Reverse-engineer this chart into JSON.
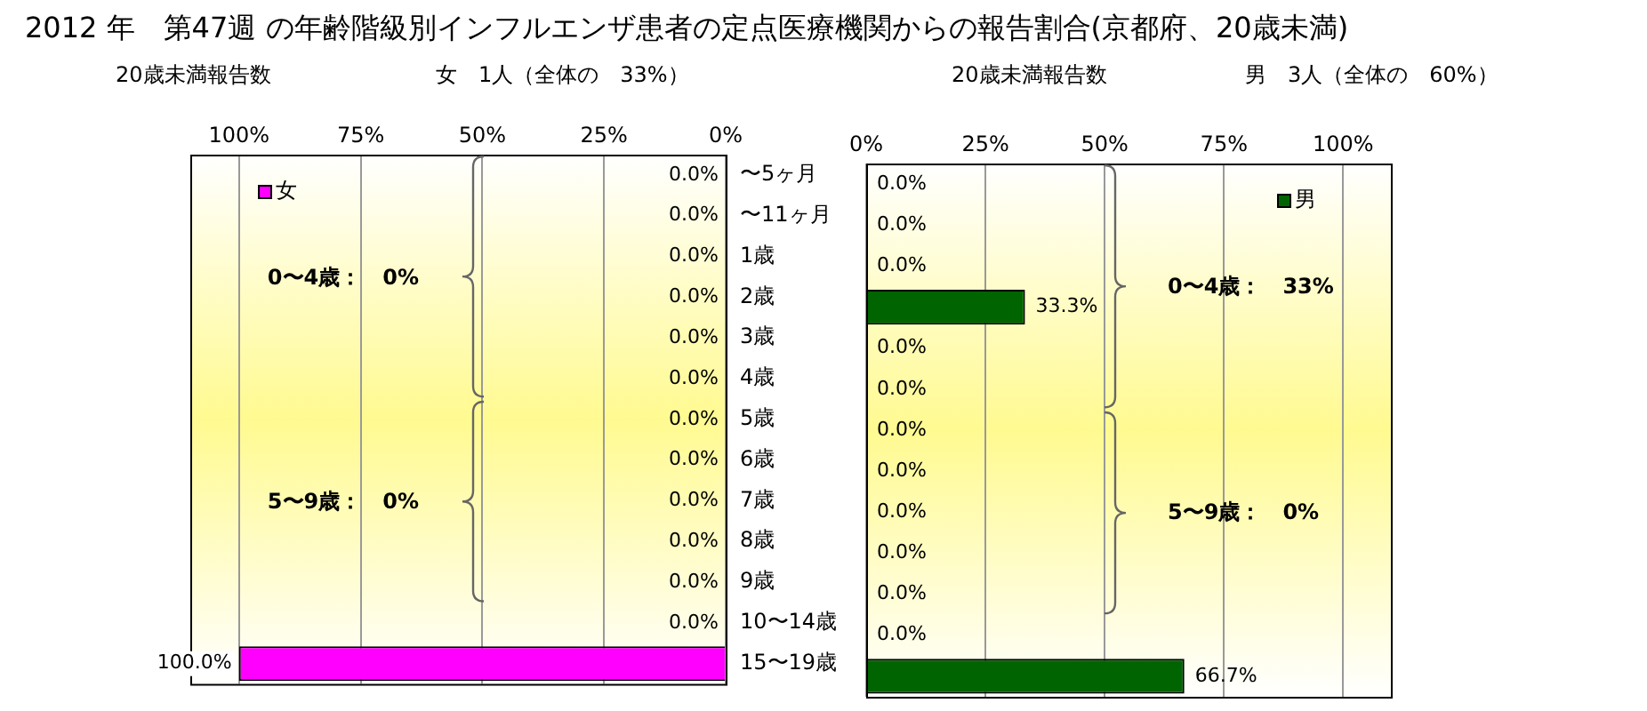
{
  "chart_data": [
    {
      "type": "bar",
      "orientation": "horizontal",
      "title": "2012 年　第47週 の年齢階級別インフルエンザ患者の定点医療機関からの報告割合(京都府、20歳未満)",
      "subtitle": "20歳未満報告数",
      "annotations": [
        "女　1人（全体の　33%）",
        "0〜4歳：　0%",
        "5〜9歳：　0%"
      ],
      "categories": [
        "〜5ヶ月",
        "〜11ヶ月",
        "1歳",
        "2歳",
        "3歳",
        "4歳",
        "5歳",
        "6歳",
        "7歳",
        "8歳",
        "9歳",
        "10〜14歳",
        "15〜19歳"
      ],
      "series": [
        {
          "name": "女",
          "color": "#ff00ff",
          "values": [
            0,
            0,
            0,
            0,
            0,
            0,
            0,
            0,
            0,
            0,
            0,
            0,
            100
          ],
          "value_labels": [
            "0.0%",
            "0.0%",
            "0.0%",
            "0.0%",
            "0.0%",
            "0.0%",
            "0.0%",
            "0.0%",
            "0.0%",
            "0.0%",
            "0.0%",
            "0.0%",
            "100.0%"
          ]
        }
      ],
      "xlim": [
        110,
        0
      ],
      "xticks": [
        {
          "value": 100,
          "label": "100%"
        },
        {
          "value": 75,
          "label": "75%"
        },
        {
          "value": 50,
          "label": "50%"
        },
        {
          "value": 25,
          "label": "25%"
        },
        {
          "value": 0,
          "label": "0%"
        }
      ],
      "grid": "x",
      "legend": "top left"
    },
    {
      "type": "bar",
      "orientation": "horizontal",
      "subtitle": "20歳未満報告数",
      "annotations": [
        "男　3人（全体の　60%）",
        "0〜4歳：　33%",
        "5〜9歳：　0%"
      ],
      "categories": [
        null,
        null,
        null,
        null,
        null,
        null,
        null,
        null,
        null,
        null,
        null,
        null,
        null
      ],
      "series": [
        {
          "name": "男",
          "color": "#006400",
          "values": [
            0,
            0,
            0,
            33.3,
            0,
            0,
            0,
            0,
            0,
            0,
            0,
            0,
            66.7
          ],
          "value_labels": [
            "0.0%",
            "0.0%",
            "0.0%",
            "33.3%",
            "0.0%",
            "0.0%",
            "0.0%",
            "0.0%",
            "0.0%",
            "0.0%",
            "0.0%",
            "0.0%",
            "66.7%"
          ]
        }
      ],
      "xlim": [
        0,
        110
      ],
      "xticks": [
        {
          "value": 0,
          "label": "0%"
        },
        {
          "value": 25,
          "label": "25%"
        },
        {
          "value": 50,
          "label": "50%"
        },
        {
          "value": 75,
          "label": "75%"
        },
        {
          "value": 100,
          "label": "100%"
        }
      ],
      "grid": "x",
      "legend": "top right",
      "tick_labels": "x"
    }
  ]
}
